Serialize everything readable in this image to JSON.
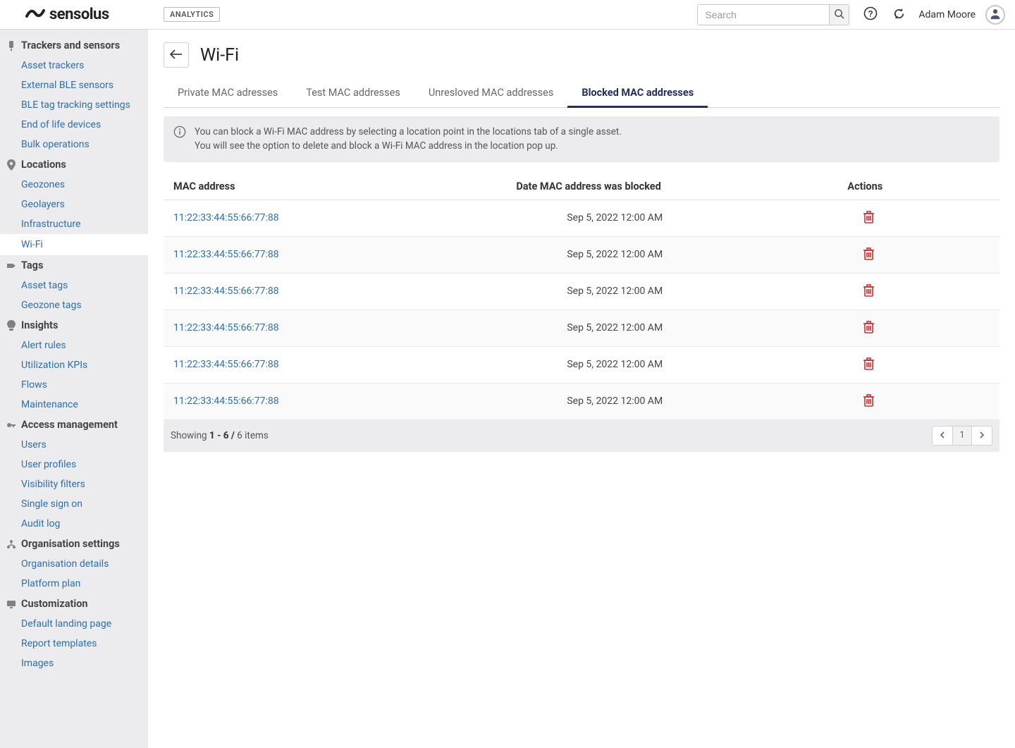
{
  "brand": {
    "name": "sensolus"
  },
  "topbar": {
    "badge": "ANALYTICS",
    "search_placeholder": "Search",
    "username": "Adam Moore"
  },
  "sidebar": {
    "sections": [
      {
        "key": "trackers",
        "label": "Trackers and sensors",
        "items": [
          {
            "key": "asset-trackers",
            "label": "Asset trackers"
          },
          {
            "key": "ext-ble",
            "label": "External BLE sensors"
          },
          {
            "key": "ble-tag",
            "label": "BLE tag tracking settings"
          },
          {
            "key": "eol",
            "label": "End of life devices"
          },
          {
            "key": "bulk",
            "label": "Bulk operations"
          }
        ]
      },
      {
        "key": "locations",
        "label": "Locations",
        "items": [
          {
            "key": "geozones",
            "label": "Geozones"
          },
          {
            "key": "geolayers",
            "label": "Geolayers"
          },
          {
            "key": "infra",
            "label": "Infrastructure"
          },
          {
            "key": "wifi",
            "label": "Wi-Fi",
            "active": true
          }
        ]
      },
      {
        "key": "tags",
        "label": "Tags",
        "items": [
          {
            "key": "asset-tags",
            "label": "Asset tags"
          },
          {
            "key": "geozone-tags",
            "label": "Geozone tags"
          }
        ]
      },
      {
        "key": "insights",
        "label": "Insights",
        "items": [
          {
            "key": "alert-rules",
            "label": "Alert rules"
          },
          {
            "key": "util-kpi",
            "label": "Utilization KPIs"
          },
          {
            "key": "flows",
            "label": "Flows"
          },
          {
            "key": "maintenance",
            "label": "Maintenance"
          }
        ]
      },
      {
        "key": "access",
        "label": "Access management",
        "items": [
          {
            "key": "users",
            "label": "Users"
          },
          {
            "key": "profiles",
            "label": "User profiles"
          },
          {
            "key": "vis-filters",
            "label": "Visibility filters"
          },
          {
            "key": "sso",
            "label": "Single sign on"
          },
          {
            "key": "audit",
            "label": "Audit log"
          }
        ]
      },
      {
        "key": "org",
        "label": "Organisation settings",
        "items": [
          {
            "key": "org-details",
            "label": "Organisation details"
          },
          {
            "key": "plan",
            "label": "Platform plan"
          }
        ]
      },
      {
        "key": "custom",
        "label": "Customization",
        "items": [
          {
            "key": "landing",
            "label": "Default landing page"
          },
          {
            "key": "reports",
            "label": "Report templates"
          },
          {
            "key": "images",
            "label": "Images"
          }
        ]
      }
    ]
  },
  "page": {
    "title": "Wi-Fi",
    "tabs": [
      {
        "key": "private",
        "label": "Private MAC adresses"
      },
      {
        "key": "test",
        "label": "Test MAC addresses"
      },
      {
        "key": "unresolved",
        "label": "Unresloved MAC  addresses"
      },
      {
        "key": "blocked",
        "label": "Blocked MAC addresses",
        "active": true
      }
    ],
    "info_line1": "You can block a Wi-Fi MAC address by selecting a location point in the locations tab of a single asset.",
    "info_line2": "You will see the option to delete and block a Wi-Fi MAC address in the location pop up.",
    "columns": {
      "mac": "MAC address",
      "date": "Date MAC address was blocked",
      "actions": "Actions"
    },
    "rows": [
      {
        "mac": "11:22:33:44:55:66:77:88",
        "date": "Sep 5, 2022 12:00 AM"
      },
      {
        "mac": "11:22:33:44:55:66:77:88",
        "date": "Sep 5, 2022 12:00 AM"
      },
      {
        "mac": "11:22:33:44:55:66:77:88",
        "date": "Sep 5, 2022 12:00 AM"
      },
      {
        "mac": "11:22:33:44:55:66:77:88",
        "date": "Sep 5, 2022 12:00 AM"
      },
      {
        "mac": "11:22:33:44:55:66:77:88",
        "date": "Sep 5, 2022 12:00 AM"
      },
      {
        "mac": "11:22:33:44:55:66:77:88",
        "date": "Sep 5, 2022 12:00 AM"
      }
    ],
    "footer": {
      "prefix": "Showing ",
      "range": "1 - 6 / ",
      "suffix": "6 items",
      "page": "1"
    }
  }
}
